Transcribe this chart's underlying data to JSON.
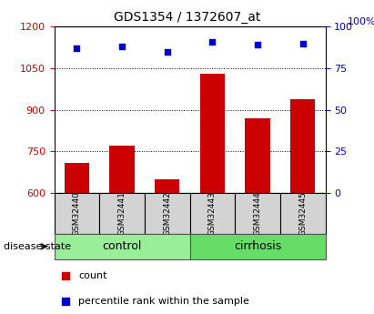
{
  "title": "GDS1354 / 1372607_at",
  "samples": [
    "GSM32440",
    "GSM32441",
    "GSM32442",
    "GSM32443",
    "GSM32444",
    "GSM32445"
  ],
  "bar_values": [
    710,
    770,
    650,
    1030,
    870,
    940
  ],
  "scatter_values": [
    87,
    88,
    85,
    91,
    89,
    90
  ],
  "bar_color": "#cc0000",
  "scatter_color": "#0000cc",
  "ylim_left": [
    600,
    1200
  ],
  "ylim_right": [
    0,
    100
  ],
  "yticks_left": [
    600,
    750,
    900,
    1050,
    1200
  ],
  "yticks_right": [
    0,
    25,
    50,
    75,
    100
  ],
  "groups": [
    {
      "label": "control",
      "indices": [
        0,
        1,
        2
      ],
      "color": "#99ee99"
    },
    {
      "label": "cirrhosis",
      "indices": [
        3,
        4,
        5
      ],
      "color": "#66dd66"
    }
  ],
  "disease_state_label": "disease state",
  "legend_items": [
    {
      "color": "#cc0000",
      "label": "count"
    },
    {
      "color": "#0000cc",
      "label": "percentile rank within the sample"
    }
  ],
  "grid_color": "black",
  "tick_label_color_left": "#cc0000",
  "tick_label_color_right": "#0000cc",
  "bar_bottom": 600,
  "right_top_label": "100%",
  "bg_color": "#ffffff"
}
